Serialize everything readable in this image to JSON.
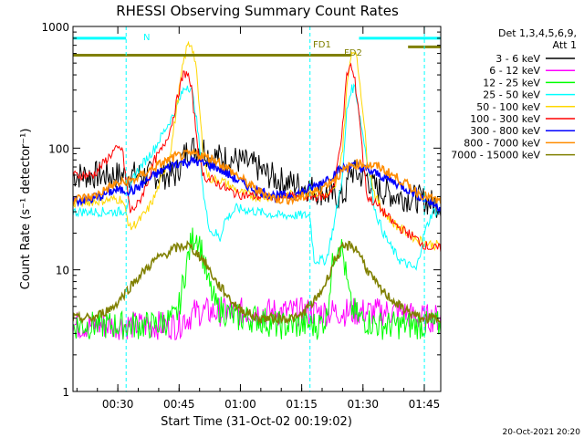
{
  "chart_data": {
    "type": "line",
    "title": "RHESSI Observing Summary Count Rates",
    "xlabel": "Start Time (31-Oct-02 00:19:02)",
    "ylabel": "Count Rate (s⁻¹ detector⁻¹)",
    "yscale": "log",
    "ylim": [
      1,
      1000
    ],
    "xlim_minutes": [
      0,
      90
    ],
    "x_ticks": [
      "00:30",
      "00:45",
      "01:00",
      "01:15",
      "01:30",
      "01:45"
    ],
    "y_ticks": [
      "1",
      "10",
      "100",
      "1000"
    ],
    "grid": false,
    "legend_placement": "right-outside",
    "legend_header": [
      "Det 1,3,4,5,6,9,",
      "Att 1"
    ],
    "timestamp": "20-Oct-2021 20:20",
    "annotations": {
      "night": "N",
      "fd1": "FD1",
      "fd2": "FD2"
    },
    "series": [
      {
        "name": "3 - 6 keV",
        "color": "#000000",
        "x": [
          0,
          25,
          26,
          27,
          28,
          29,
          29.5,
          30,
          31,
          32,
          33,
          35,
          40,
          45,
          46,
          47,
          48,
          49,
          50,
          55,
          60,
          62,
          64,
          66,
          67,
          67.5,
          68,
          69,
          70,
          72,
          73,
          75,
          80,
          85,
          88,
          90
        ],
        "y": [
          60,
          60,
          70,
          85,
          95,
          100,
          100,
          100,
          100,
          100,
          90,
          85,
          80,
          70,
          65,
          62,
          60,
          58,
          55,
          50,
          45,
          42,
          40,
          40,
          45,
          60,
          65,
          62,
          60,
          58,
          50,
          45,
          40,
          38,
          35,
          35
        ]
      },
      {
        "name": "6 - 12 keV",
        "color": "#ff00ff",
        "x": [
          0,
          20,
          26,
          27,
          28,
          30,
          35,
          40,
          45,
          50,
          55,
          60,
          65,
          68,
          70,
          75,
          80,
          85,
          88,
          90
        ],
        "y": [
          3.5,
          3.5,
          3.5,
          4,
          4,
          4.5,
          4.5,
          4.5,
          4.5,
          4.5,
          4.5,
          4.5,
          4.5,
          4.5,
          4.5,
          4.5,
          4.5,
          4,
          4,
          4
        ]
      },
      {
        "name": "12 - 25 keV",
        "color": "#00ff00",
        "x": [
          0,
          10,
          20,
          25,
          26,
          27,
          28,
          29,
          30,
          31,
          32,
          33,
          35,
          40,
          45,
          50,
          55,
          60,
          62,
          63,
          64,
          65,
          66,
          67,
          68,
          70,
          75,
          80,
          85,
          88,
          90
        ],
        "y": [
          3.5,
          3.5,
          3.5,
          4,
          5,
          8,
          12,
          17,
          20,
          17,
          12,
          8,
          5,
          4,
          4,
          3.5,
          3.5,
          3.5,
          4,
          8,
          14,
          17,
          14,
          8,
          5,
          4,
          3.5,
          3.5,
          3.5,
          3.5,
          3.5
        ]
      },
      {
        "name": "25 - 50 keV",
        "color": "#00ffff",
        "x": [
          0,
          12,
          13,
          15,
          20,
          25,
          27,
          28,
          29,
          30,
          31,
          32,
          33,
          34,
          35,
          36,
          37,
          40,
          45,
          50,
          55,
          58,
          59,
          60,
          62,
          64,
          66,
          67,
          68,
          69,
          70,
          72,
          74,
          76,
          78,
          80,
          84,
          86,
          88,
          90
        ],
        "y": [
          30,
          30,
          32,
          60,
          100,
          200,
          300,
          330,
          300,
          200,
          100,
          40,
          25,
          20,
          20,
          18,
          25,
          32,
          30,
          28,
          28,
          28,
          12,
          12,
          12,
          25,
          60,
          200,
          300,
          320,
          200,
          80,
          30,
          20,
          15,
          12,
          10,
          20,
          30,
          30
        ]
      },
      {
        "name": "50 - 100 keV",
        "color": "#ffd700",
        "x": [
          0,
          10,
          12,
          14,
          16,
          18,
          20,
          22,
          24,
          26,
          27,
          28,
          29,
          30,
          31,
          32,
          33,
          34,
          36,
          38,
          40,
          42,
          45,
          50,
          55,
          58,
          60,
          62,
          64,
          66,
          67,
          68,
          69,
          70,
          71,
          72,
          74,
          76,
          78,
          80,
          82,
          84,
          86,
          88,
          90
        ],
        "y": [
          35,
          38,
          38,
          22,
          25,
          30,
          40,
          60,
          100,
          300,
          500,
          700,
          720,
          500,
          200,
          80,
          60,
          55,
          55,
          50,
          45,
          42,
          40,
          40,
          42,
          45,
          42,
          40,
          45,
          100,
          300,
          600,
          650,
          400,
          200,
          80,
          40,
          30,
          25,
          22,
          20,
          18,
          17,
          16,
          16
        ]
      },
      {
        "name": "100 - 300 keV",
        "color": "#ff0000",
        "x": [
          0,
          5,
          10,
          12,
          14,
          16,
          18,
          20,
          22,
          24,
          26,
          27,
          28,
          29,
          30,
          31,
          32,
          33,
          34,
          36,
          38,
          40,
          45,
          50,
          55,
          58,
          60,
          62,
          64,
          66,
          67,
          68,
          69,
          70,
          71,
          72,
          74,
          76,
          78,
          80,
          82,
          84,
          86,
          88,
          90
        ],
        "y": [
          60,
          60,
          95,
          100,
          30,
          35,
          50,
          80,
          100,
          150,
          300,
          400,
          420,
          300,
          150,
          80,
          60,
          55,
          55,
          50,
          45,
          42,
          40,
          40,
          40,
          40,
          40,
          40,
          50,
          150,
          400,
          480,
          350,
          200,
          80,
          40,
          35,
          30,
          25,
          22,
          20,
          18,
          16,
          15,
          15
        ]
      },
      {
        "name": "300 - 800 keV",
        "color": "#0000ff",
        "x": [
          0,
          5,
          10,
          13,
          15,
          20,
          25,
          30,
          35,
          40,
          45,
          50,
          55,
          60,
          65,
          68,
          70,
          75,
          80,
          85,
          88,
          90
        ],
        "y": [
          37,
          38,
          45,
          45,
          45,
          60,
          75,
          78,
          70,
          55,
          45,
          40,
          42,
          50,
          65,
          72,
          70,
          60,
          50,
          40,
          35,
          32
        ]
      },
      {
        "name": "800 - 7000 keV",
        "color": "#ff8c00",
        "x": [
          0,
          5,
          10,
          15,
          20,
          25,
          30,
          35,
          40,
          45,
          50,
          55,
          60,
          65,
          68,
          70,
          75,
          80,
          85,
          88,
          90
        ],
        "y": [
          38,
          40,
          50,
          55,
          70,
          85,
          90,
          80,
          60,
          45,
          38,
          38,
          45,
          60,
          72,
          75,
          70,
          55,
          42,
          38,
          36
        ]
      },
      {
        "name": "7000 - 15000 keV",
        "color": "#808000",
        "x": [
          0,
          5,
          10,
          15,
          20,
          25,
          28,
          30,
          32,
          35,
          40,
          45,
          50,
          55,
          60,
          62,
          64,
          66,
          68,
          70,
          72,
          75,
          80,
          85,
          88,
          90
        ],
        "y": [
          4,
          4,
          5,
          8,
          12,
          15,
          16,
          14,
          12,
          8,
          5,
          4,
          4,
          4,
          6,
          8,
          12,
          15,
          16,
          14,
          10,
          7,
          5,
          4,
          4,
          4
        ]
      }
    ],
    "overlay_segments": [
      {
        "color": "#00ffff",
        "y": 800,
        "x": [
          0,
          13
        ]
      },
      {
        "color": "#00ffff",
        "y": 800,
        "x": [
          70,
          90
        ]
      },
      {
        "color": "#808000",
        "y": 580,
        "x": [
          0,
          68
        ]
      },
      {
        "color": "#808000",
        "y": 680,
        "x": [
          82,
          90
        ]
      }
    ],
    "vlines": [
      {
        "color": "#00ffff",
        "x": 13
      },
      {
        "color": "#00ffff",
        "x": 58
      },
      {
        "color": "#00ffff",
        "x": 86
      }
    ]
  }
}
